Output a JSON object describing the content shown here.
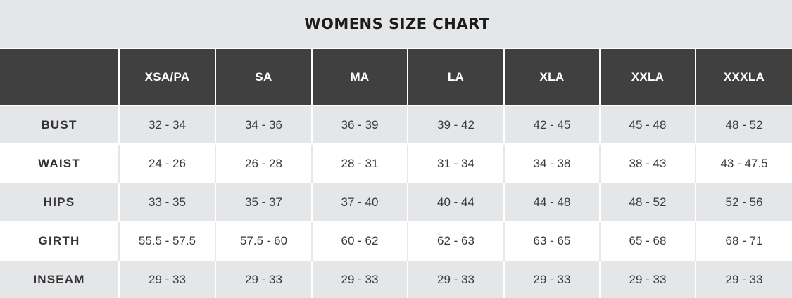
{
  "title": "WOMENS SIZE CHART",
  "header": {
    "corner": "",
    "sizes": [
      "XSA/PA",
      "SA",
      "MA",
      "LA",
      "XLA",
      "XXLA",
      "XXXLA"
    ]
  },
  "rows": [
    {
      "label": "BUST",
      "values": [
        "32 - 34",
        "34 - 36",
        "36 - 39",
        "39 - 42",
        "42 - 45",
        "45 - 48",
        "48 - 52"
      ]
    },
    {
      "label": "WAIST",
      "values": [
        "24 - 26",
        "26 - 28",
        "28 - 31",
        "31 - 34",
        "34 - 38",
        "38 - 43",
        "43 - 47.5"
      ]
    },
    {
      "label": "HIPS",
      "values": [
        "33 - 35",
        "35 - 37",
        "37 - 40",
        "40 - 44",
        "44 - 48",
        "48 - 52",
        "52 - 56"
      ]
    },
    {
      "label": "GIRTH",
      "values": [
        "55.5 - 57.5",
        "57.5 - 60",
        "60 - 62",
        "62 - 63",
        "63 - 65",
        "65 - 68",
        "68 - 71"
      ]
    },
    {
      "label": "INSEAM",
      "values": [
        "29 - 33",
        "29 - 33",
        "29 - 33",
        "29 - 33",
        "29 - 33",
        "29 - 33",
        "29 - 33"
      ]
    }
  ],
  "colors": {
    "header_bg": "#404040",
    "title_bg": "#e5e6e8",
    "shaded_row_bg": "#e5e6e8",
    "plain_row_bg": "#ffffff"
  }
}
